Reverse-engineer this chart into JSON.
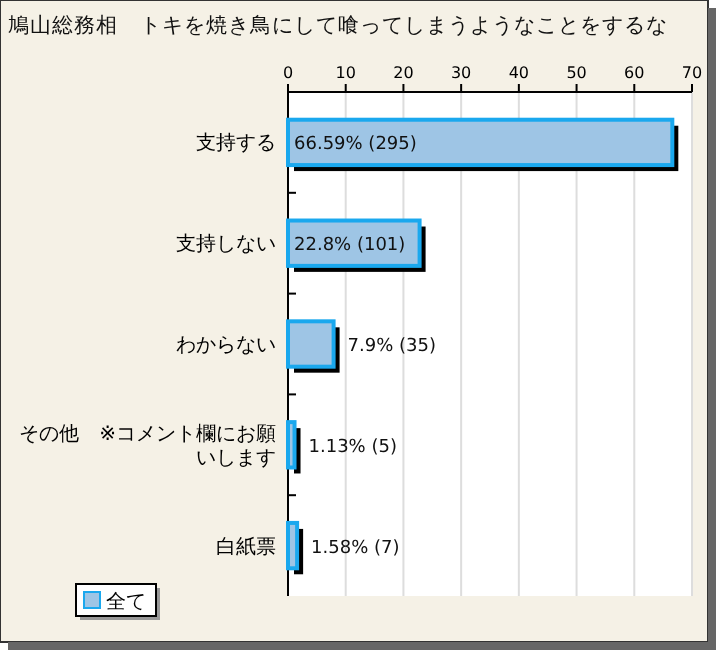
{
  "chart_data": {
    "type": "bar",
    "orientation": "horizontal",
    "title": "鳩山総務相　トキを焼き鳥にして喰ってしまうようなことをするな",
    "categories": [
      "支持する",
      "支持しない",
      "わからない",
      "その他　※コメント欄にお願いします",
      "白紙票"
    ],
    "series": [
      {
        "name": "全て",
        "color": "#9ec5e5",
        "values": [
          66.59,
          22.8,
          7.9,
          1.13,
          1.58
        ],
        "value_labels": [
          "66.59% (295)",
          "22.8% (101)",
          "7.9% (35)",
          "1.13% (5)",
          "1.58% (7)"
        ]
      }
    ],
    "xlim": [
      0,
      70
    ],
    "xticks": [
      0,
      10,
      20,
      30,
      40,
      50,
      60,
      70
    ],
    "grid": "x",
    "legend": "bottom left"
  }
}
